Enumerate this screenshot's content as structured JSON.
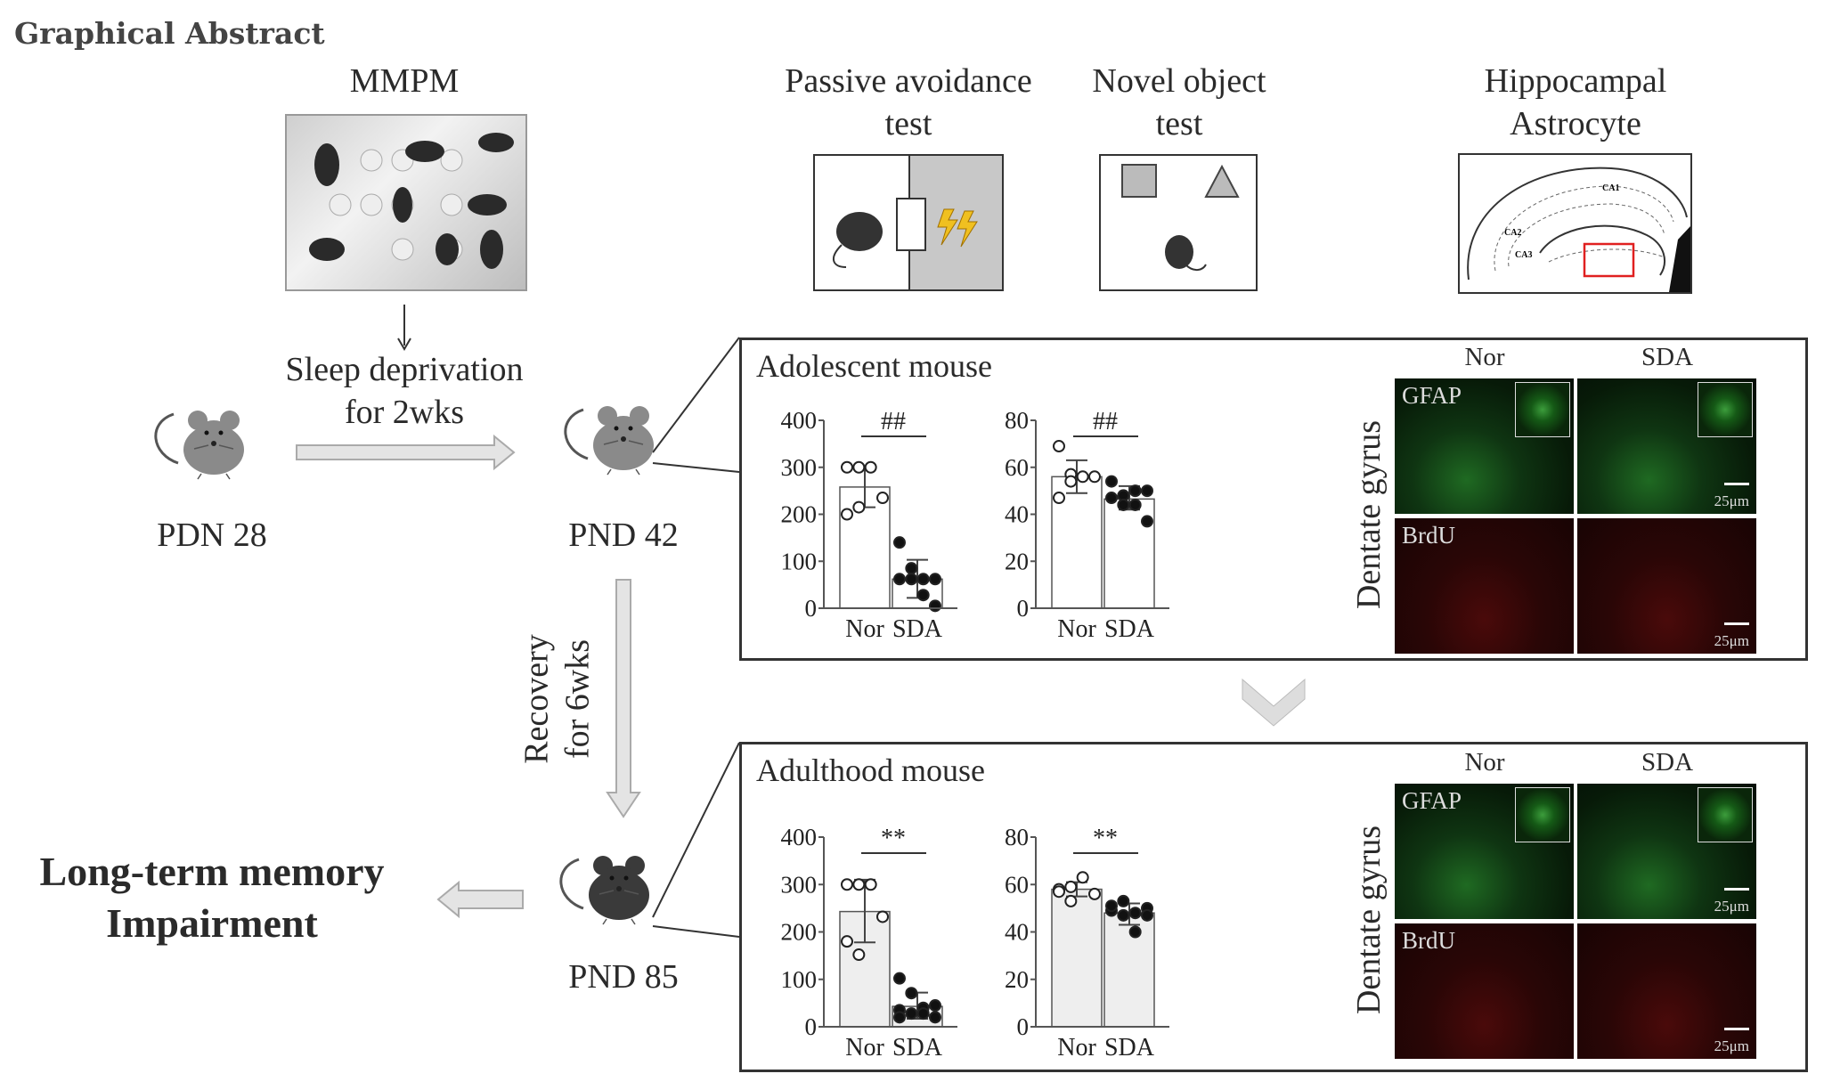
{
  "title": "Graphical Abstract",
  "mmpm": {
    "label": "MMPM"
  },
  "sleep": {
    "line1": "Sleep deprivation",
    "line2": "for 2wks"
  },
  "recovery": {
    "line1": "Recovery",
    "line2": "for 6wks"
  },
  "ages": {
    "start": "PDN 28",
    "mid": "PND 42",
    "end": "PND 85"
  },
  "outcome": {
    "line1": "Long-term memory",
    "line2": "Impairment"
  },
  "tests": {
    "passive": {
      "line1": "Passive avoidance",
      "line2": "test"
    },
    "novel": {
      "line1": "Novel object",
      "line2": "test"
    },
    "hippo": {
      "line1": "Hippocampal",
      "line2": "Astrocyte",
      "regions": [
        "CA1",
        "CA2",
        "CA3"
      ]
    }
  },
  "colors": {
    "highlight_box": "#e02020",
    "gfap": "#2fa82f",
    "brdu": "#d01818",
    "arrow_gray": "#d9d9d9",
    "lightning": "#f0c020"
  },
  "panels": [
    {
      "title": "Adolescent mouse",
      "micro": {
        "cols": [
          "Nor",
          "SDA"
        ],
        "rows": [
          "GFAP",
          "BrdU"
        ],
        "side": "Dentate gyrus",
        "scale": "25μm"
      }
    },
    {
      "title": "Adulthood mouse",
      "micro": {
        "cols": [
          "Nor",
          "SDA"
        ],
        "rows": [
          "GFAP",
          "BrdU"
        ],
        "side": "Dentate gyrus",
        "scale": "25μm"
      }
    }
  ],
  "chart_data": [
    {
      "type": "bar",
      "panel": "Adolescent mouse",
      "categories": [
        "Nor",
        "SDA"
      ],
      "ylim": [
        0,
        400
      ],
      "yticks": [
        "0",
        "100",
        "200",
        "300",
        "400"
      ],
      "significance": "##",
      "bar_fill": "#ffffff",
      "series": [
        {
          "mean": 258,
          "err": [
            215,
            300
          ],
          "points": [
            300,
            300,
            300,
            235,
            200,
            215
          ]
        },
        {
          "mean": 62,
          "err": [
            22,
            103
          ],
          "points": [
            140,
            85,
            62,
            62,
            62,
            62,
            28,
            5
          ]
        }
      ]
    },
    {
      "type": "bar",
      "panel": "Adolescent mouse",
      "categories": [
        "Nor",
        "SDA"
      ],
      "ylim": [
        0,
        80
      ],
      "yticks": [
        "0",
        "20",
        "40",
        "60",
        "80"
      ],
      "significance": "##",
      "bar_fill": "#ffffff",
      "series": [
        {
          "mean": 56,
          "err": [
            49,
            63
          ],
          "points": [
            69,
            57,
            56,
            56,
            47,
            54
          ]
        },
        {
          "mean": 46.5,
          "err": [
            42,
            52
          ],
          "points": [
            54,
            48,
            50,
            50,
            47,
            44,
            44,
            37
          ]
        }
      ]
    },
    {
      "type": "bar",
      "panel": "Adulthood mouse",
      "categories": [
        "Nor",
        "SDA"
      ],
      "ylim": [
        0,
        400
      ],
      "yticks": [
        "0",
        "100",
        "200",
        "300",
        "400"
      ],
      "significance": "**",
      "bar_fill": "#eeeeee",
      "series": [
        {
          "mean": 243,
          "err": [
            178,
            310
          ],
          "points": [
            300,
            300,
            300,
            232,
            180,
            152
          ]
        },
        {
          "mean": 43,
          "err": [
            17,
            72
          ],
          "points": [
            102,
            71,
            40,
            20,
            35,
            28,
            28,
            45,
            20
          ]
        }
      ]
    },
    {
      "type": "bar",
      "panel": "Adulthood mouse",
      "categories": [
        "Nor",
        "SDA"
      ],
      "ylim": [
        0,
        80
      ],
      "yticks": [
        "0",
        "20",
        "40",
        "60",
        "80"
      ],
      "significance": "**",
      "bar_fill": "#eeeeee",
      "series": [
        {
          "mean": 58,
          "err": [
            55,
            61
          ],
          "points": [
            58,
            59,
            63,
            56,
            57,
            53
          ]
        },
        {
          "mean": 48,
          "err": [
            43,
            52
          ],
          "points": [
            49,
            47,
            48,
            50,
            51,
            53,
            40,
            47
          ]
        }
      ]
    }
  ]
}
